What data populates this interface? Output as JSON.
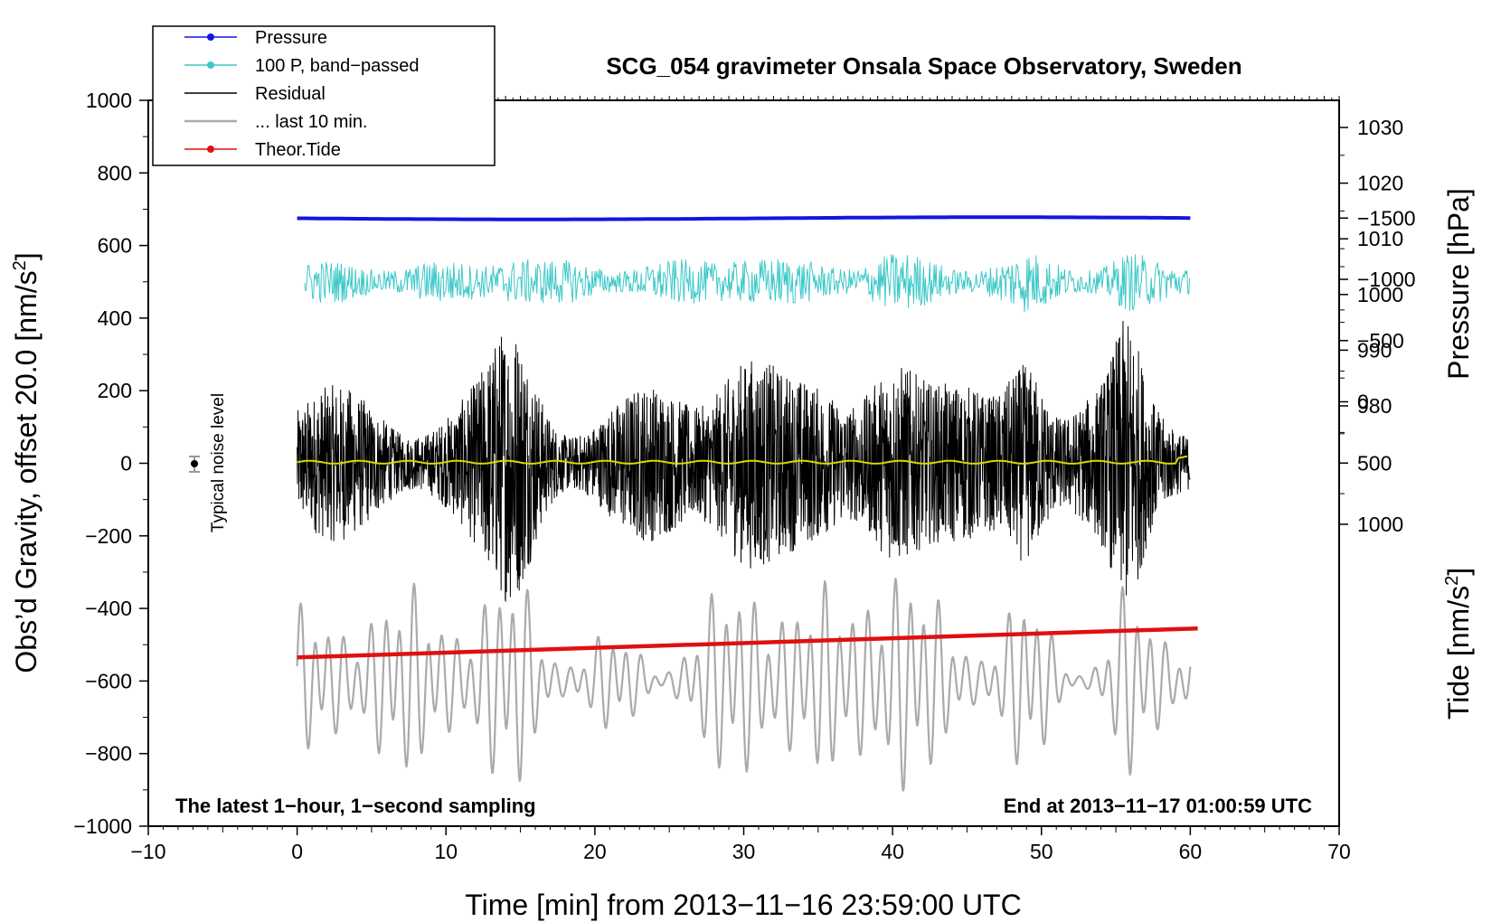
{
  "chart_data": {
    "type": "line",
    "title": "SCG_054 gravimeter Onsala Space Observatory, Sweden",
    "xlabel": "Time [min] from 2013−11−16 23:59:00 UTC",
    "ylabel_left_pre": "Obs’d Gravity, offset 20.0 [nm/s",
    "ylabel_left_sup": "2",
    "ylabel_left_post": "]",
    "ylabel_right_pressure": "Pressure [hPa]",
    "ylabel_right_tide_pre": "Tide [nm/s",
    "ylabel_right_tide_sup": "2",
    "ylabel_right_tide_post": "]",
    "xlim": [
      -10,
      70
    ],
    "ylim_left": [
      -1000,
      1000
    ],
    "x_ticks": [
      -10,
      0,
      10,
      20,
      30,
      40,
      50,
      60,
      70
    ],
    "x_tick_labels": [
      "−10",
      "0",
      "10",
      "20",
      "30",
      "40",
      "50",
      "60",
      "70"
    ],
    "y_left_ticks": [
      1000,
      800,
      600,
      400,
      200,
      0,
      -200,
      -400,
      -600,
      -800,
      -1000
    ],
    "y_left_tick_labels": [
      "1000",
      "800",
      "600",
      "400",
      "200",
      "0",
      "−200",
      "−400",
      "−600",
      "−800",
      "−1000"
    ],
    "pressure_ticks": [
      1030,
      1020,
      1010,
      1000,
      990,
      980
    ],
    "pressure_tick_labels": [
      "1030",
      "1020",
      "1010",
      "1000",
      "990",
      "980"
    ],
    "tide_ticks": [
      1000,
      500,
      0,
      -500,
      -1000,
      -1500
    ],
    "tide_tick_labels": [
      "1000",
      "500",
      "0",
      "−500",
      "−1000",
      "−1500"
    ],
    "legend": [
      {
        "label": "Pressure",
        "color": "#1515e0",
        "marker": true
      },
      {
        "label": "100 P, band−passed",
        "color": "#3cc8c8",
        "marker": true
      },
      {
        "label": "Residual",
        "color": "#000000",
        "marker": false
      },
      {
        "label": "... last 10 min.",
        "color": "#aaaaaa",
        "marker": false
      },
      {
        "label": "Theor.Tide",
        "color": "#e01010",
        "marker": true
      }
    ],
    "series": [
      {
        "name": "Pressure",
        "color": "#1515e0",
        "x_range": [
          0,
          60
        ],
        "value": 675,
        "approx_pressure_hPa": 1013.7
      },
      {
        "name": "100 P, band−passed",
        "color": "#3cc8c8",
        "x_range": [
          0.5,
          60
        ],
        "center": 500,
        "amplitude": 75
      },
      {
        "name": "Residual",
        "color": "#000000",
        "x_range": [
          0,
          60
        ],
        "center": 0,
        "amplitude": 240
      },
      {
        "name": "Residual smoothed",
        "color": "#d8d800",
        "x_range": [
          0,
          60
        ],
        "center": 3
      },
      {
        "name": "... last 10 min.",
        "color": "#aaaaaa",
        "x_range": [
          0,
          60
        ],
        "center": -600,
        "amplitude": 230
      },
      {
        "name": "Theor.Tide",
        "color": "#e01010",
        "x_range": [
          0,
          60.5
        ],
        "start": -535,
        "end": -455
      }
    ],
    "noise_marker": {
      "x": -7,
      "y": 0,
      "error": 20
    },
    "noise_label": "Typical noise level",
    "annotation_left": "The latest 1−hour, 1−second sampling",
    "annotation_right": "End at 2013−11−17 01:00:59 UTC"
  }
}
